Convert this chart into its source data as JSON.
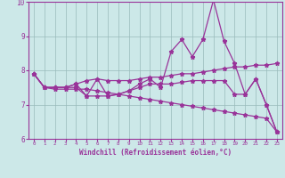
{
  "background_color": "#cce8e8",
  "line_color": "#993399",
  "grid_color": "#99bbbb",
  "xlabel": "Windchill (Refroidissement éolien,°C)",
  "xlabel_color": "#993399",
  "xlim": [
    -0.5,
    23.5
  ],
  "ylim": [
    6,
    10
  ],
  "yticks": [
    6,
    7,
    8,
    9,
    10
  ],
  "xticks": [
    0,
    1,
    2,
    3,
    4,
    5,
    6,
    7,
    8,
    9,
    10,
    11,
    12,
    13,
    14,
    15,
    16,
    17,
    18,
    19,
    20,
    21,
    22,
    23
  ],
  "series1_x": [
    0,
    1,
    2,
    3,
    4,
    5,
    6,
    7,
    8,
    9,
    10,
    11,
    12,
    13,
    14,
    15,
    16,
    17,
    18,
    19,
    20,
    21,
    22,
    23
  ],
  "series1_y": [
    7.9,
    7.5,
    7.5,
    7.5,
    7.6,
    7.25,
    7.75,
    7.25,
    7.3,
    7.4,
    7.6,
    7.75,
    7.5,
    8.55,
    8.9,
    8.4,
    8.9,
    10.05,
    8.85,
    8.2,
    7.3,
    7.75,
    7.0,
    6.2
  ],
  "series2_x": [
    0,
    1,
    2,
    3,
    4,
    5,
    6,
    7,
    8,
    9,
    10,
    11,
    12,
    13,
    14,
    15,
    16,
    17,
    18,
    19,
    20,
    21,
    22,
    23
  ],
  "series2_y": [
    7.9,
    7.5,
    7.5,
    7.5,
    7.6,
    7.7,
    7.75,
    7.7,
    7.7,
    7.7,
    7.75,
    7.8,
    7.8,
    7.85,
    7.9,
    7.9,
    7.95,
    8.0,
    8.05,
    8.1,
    8.1,
    8.15,
    8.15,
    8.2
  ],
  "series3_x": [
    0,
    1,
    2,
    3,
    4,
    5,
    6,
    7,
    8,
    9,
    10,
    11,
    12,
    13,
    14,
    15,
    16,
    17,
    18,
    19,
    20,
    21,
    22,
    23
  ],
  "series3_y": [
    7.9,
    7.5,
    7.5,
    7.5,
    7.5,
    7.25,
    7.25,
    7.25,
    7.3,
    7.4,
    7.5,
    7.6,
    7.6,
    7.6,
    7.65,
    7.7,
    7.7,
    7.7,
    7.7,
    7.3,
    7.3,
    7.75,
    7.0,
    6.2
  ],
  "series4_x": [
    0,
    1,
    2,
    3,
    4,
    5,
    6,
    7,
    8,
    9,
    10,
    11,
    12,
    13,
    14,
    15,
    16,
    17,
    18,
    19,
    20,
    21,
    22,
    23
  ],
  "series4_y": [
    7.9,
    7.5,
    7.45,
    7.45,
    7.45,
    7.45,
    7.4,
    7.35,
    7.3,
    7.25,
    7.2,
    7.15,
    7.1,
    7.05,
    7.0,
    6.95,
    6.9,
    6.85,
    6.8,
    6.75,
    6.7,
    6.65,
    6.6,
    6.2
  ]
}
